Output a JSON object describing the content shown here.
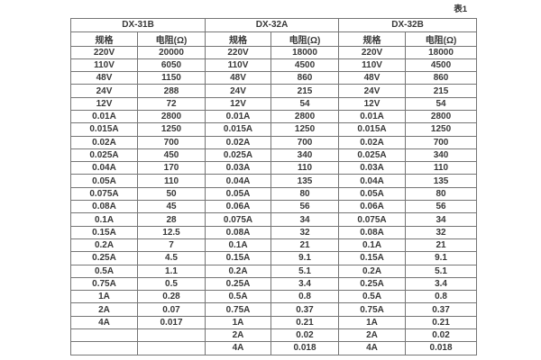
{
  "caption": "表1",
  "table": {
    "groups": [
      {
        "name": "DX-31B",
        "columns": [
          "规格",
          "电阻(Ω)"
        ],
        "rows": [
          [
            "220V",
            "20000"
          ],
          [
            "110V",
            "6050"
          ],
          [
            "48V",
            "1150"
          ],
          [
            "24V",
            "288"
          ],
          [
            "12V",
            "72"
          ],
          [
            "0.01A",
            "2800"
          ],
          [
            "0.015A",
            "1250"
          ],
          [
            "0.02A",
            "700"
          ],
          [
            "0.025A",
            "450"
          ],
          [
            "0.04A",
            "170"
          ],
          [
            "0.05A",
            "110"
          ],
          [
            "0.075A",
            "50"
          ],
          [
            "0.08A",
            "45"
          ],
          [
            "0.1A",
            "28"
          ],
          [
            "0.15A",
            "12.5"
          ],
          [
            "0.2A",
            "7"
          ],
          [
            "0.25A",
            "4.5"
          ],
          [
            "0.5A",
            "1.1"
          ],
          [
            "0.75A",
            "0.5"
          ],
          [
            "1A",
            "0.28"
          ],
          [
            "2A",
            "0.07"
          ],
          [
            "4A",
            "0.017"
          ],
          [
            "",
            ""
          ],
          [
            "",
            ""
          ]
        ]
      },
      {
        "name": "DX-32A",
        "columns": [
          "规格",
          "电阻(Ω)"
        ],
        "rows": [
          [
            "220V",
            "18000"
          ],
          [
            "110V",
            "4500"
          ],
          [
            "48V",
            "860"
          ],
          [
            "24V",
            "215"
          ],
          [
            "12V",
            "54"
          ],
          [
            "0.01A",
            "2800"
          ],
          [
            "0.015A",
            "1250"
          ],
          [
            "0.02A",
            "700"
          ],
          [
            "0.025A",
            "340"
          ],
          [
            "0.03A",
            "110"
          ],
          [
            "0.04A",
            "135"
          ],
          [
            "0.05A",
            "80"
          ],
          [
            "0.06A",
            "56"
          ],
          [
            "0.075A",
            "34"
          ],
          [
            "0.08A",
            "32"
          ],
          [
            "0.1A",
            "21"
          ],
          [
            "0.15A",
            "9.1"
          ],
          [
            "0.2A",
            "5.1"
          ],
          [
            "0.25A",
            "3.4"
          ],
          [
            "0.5A",
            "0.8"
          ],
          [
            "0.75A",
            "0.37"
          ],
          [
            "1A",
            "0.21"
          ],
          [
            "2A",
            "0.02"
          ],
          [
            "4A",
            "0.018"
          ]
        ]
      },
      {
        "name": "DX-32B",
        "columns": [
          "规格",
          "电阻(Ω)"
        ],
        "rows": [
          [
            "220V",
            "18000"
          ],
          [
            "110V",
            "4500"
          ],
          [
            "48V",
            "860"
          ],
          [
            "24V",
            "215"
          ],
          [
            "12V",
            "54"
          ],
          [
            "0.01A",
            "2800"
          ],
          [
            "0.015A",
            "1250"
          ],
          [
            "0.02A",
            "700"
          ],
          [
            "0.025A",
            "340"
          ],
          [
            "0.03A",
            "110"
          ],
          [
            "0.04A",
            "135"
          ],
          [
            "0.05A",
            "80"
          ],
          [
            "0.06A",
            "56"
          ],
          [
            "0.075A",
            "34"
          ],
          [
            "0.08A",
            "32"
          ],
          [
            "0.1A",
            "21"
          ],
          [
            "0.15A",
            "9.1"
          ],
          [
            "0.2A",
            "5.1"
          ],
          [
            "0.25A",
            "3.4"
          ],
          [
            "0.5A",
            "0.8"
          ],
          [
            "0.75A",
            "0.37"
          ],
          [
            "1A",
            "0.21"
          ],
          [
            "2A",
            "0.02"
          ],
          [
            "4A",
            "0.018"
          ]
        ]
      }
    ]
  }
}
